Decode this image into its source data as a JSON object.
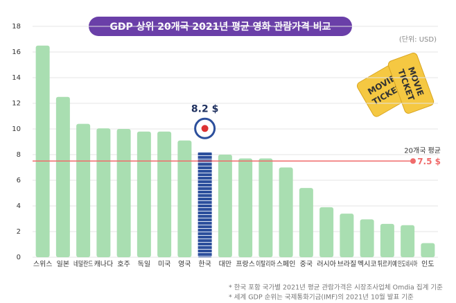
{
  "chart_data": {
    "type": "bar",
    "title": "GDP 상위 20개국 2021년 평균 영화 관람가격 비교",
    "unit": "(단위: USD)",
    "categories": [
      "스위스",
      "일본",
      "네덜란드",
      "캐나다",
      "호주",
      "독일",
      "미국",
      "영국",
      "한국",
      "대만",
      "프랑스",
      "이탈리아",
      "스페인",
      "중국",
      "러시아",
      "브라질",
      "멕시코",
      "튀르키예",
      "인도네시아",
      "인도"
    ],
    "values": [
      16.5,
      12.5,
      10.4,
      10.05,
      10.0,
      9.8,
      9.8,
      9.1,
      8.2,
      8.0,
      7.7,
      7.7,
      7.0,
      5.4,
      3.9,
      3.4,
      2.95,
      2.6,
      2.5,
      1.1
    ],
    "value_labels": [
      null,
      null,
      null,
      null,
      null,
      null,
      null,
      null,
      "8.2 $",
      null,
      null,
      null,
      null,
      null,
      null,
      null,
      null,
      null,
      null,
      null
    ],
    "color": "#a9deb1",
    "highlight_color": "#2c4f9c",
    "average": {
      "label": "20개국 평균",
      "value": 7.5,
      "value_label": "7.5 $",
      "color": "#f06b6b"
    },
    "ylim": [
      0,
      18
    ],
    "yticks": [
      0,
      2,
      4,
      6,
      8,
      10,
      12,
      14,
      16,
      18
    ],
    "grid": true,
    "ticket_text": [
      "MOVIE",
      "TICKET"
    ],
    "notes": [
      "* 한국 포함 국가별 2021년 평균 관람가격은 시장조사업체 Omdia 집계 기준",
      "* 세계 GDP 순위는 국제통화기금(IMF)의 2021년 10월 발표 기준"
    ]
  }
}
